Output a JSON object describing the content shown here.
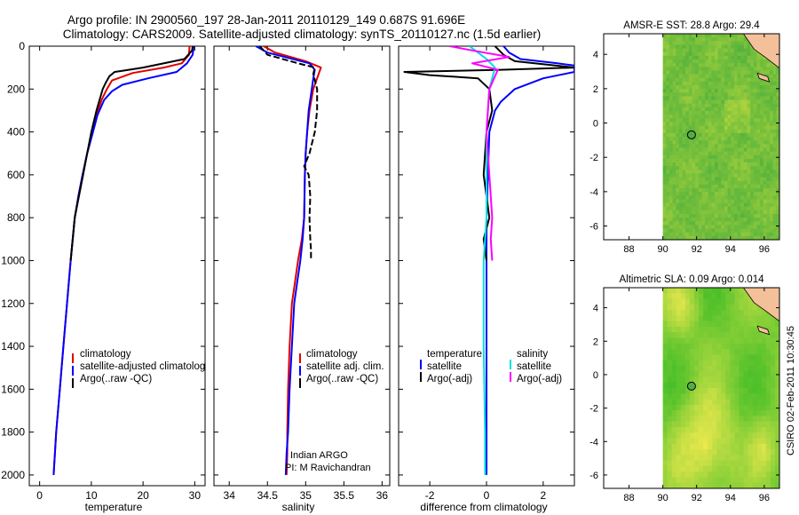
{
  "title_line1": "Argo profile: IN 2900560_197 28-Jan-2011 20110129_149 0.687S 91.696E",
  "title_line2": "Climatology: CARS2009. Satellite-adjusted climatology: synTS_20110127.nc (1.5d earlier)",
  "side_label": "CSIRO 02-Feb-2011 10:30:45",
  "credit_line1": "Indian ARGO",
  "credit_line2": "PI: M Ravichandran",
  "colors": {
    "climatology": "#e00000",
    "satellite": "#0000ff",
    "argo": "#000000",
    "cyan": "#00e0e0",
    "magenta": "#ff00ff",
    "map_green": "#66cc33",
    "land": "#f4c09a"
  },
  "chart_data": [
    {
      "type": "line",
      "xlabel": "temperature",
      "ylabel": "",
      "xlim": [
        -2,
        32
      ],
      "ylim": [
        2050,
        0
      ],
      "yreversed": true,
      "xticks": [
        0,
        10,
        20,
        30
      ],
      "yticks": [
        0,
        200,
        400,
        600,
        800,
        1000,
        1200,
        1400,
        1600,
        1800,
        2000
      ],
      "legend": [
        "climatology",
        "satellite-adjusted climatology",
        "Argo(..raw -QC)"
      ],
      "legend_display": [
        "climatology",
        "satellite-adjusted climatolog",
        "Argo(..raw -QC)"
      ],
      "series": [
        {
          "name": "climatology",
          "color": "#e00000",
          "x": [
            29.0,
            28.9,
            27.5,
            24.0,
            18.0,
            14.0,
            13.0,
            12.0,
            11.0,
            10.0,
            9.2,
            8.3,
            7.5,
            6.8,
            6.0,
            5.3,
            4.6,
            3.9,
            3.2,
            2.7
          ],
          "y": [
            0,
            40,
            80,
            100,
            125,
            160,
            200,
            250,
            320,
            420,
            500,
            600,
            700,
            800,
            1000,
            1200,
            1400,
            1600,
            1800,
            2000
          ]
        },
        {
          "name": "satellite-adjusted climatology",
          "color": "#0000ff",
          "x": [
            29.8,
            29.6,
            28.5,
            26.5,
            21.0,
            16.0,
            14.0,
            12.5,
            11.2,
            10.1,
            9.2,
            8.3,
            7.5,
            6.8,
            6.0,
            5.3,
            4.6,
            3.9,
            3.2,
            2.7
          ],
          "y": [
            0,
            40,
            80,
            120,
            150,
            180,
            210,
            250,
            320,
            420,
            500,
            600,
            700,
            800,
            1000,
            1200,
            1400,
            1600,
            1800,
            2000
          ]
        },
        {
          "name": "Argo(..raw -QC)",
          "color": "#000000",
          "x": [
            29.6,
            29.5,
            28.0,
            20.0,
            16.0,
            14.5,
            13.5,
            12.8,
            12.2,
            11.0,
            10.0,
            9.2,
            8.4,
            7.6,
            6.8,
            6.0
          ],
          "y": [
            0,
            20,
            60,
            100,
            115,
            120,
            140,
            170,
            200,
            300,
            400,
            500,
            600,
            700,
            800,
            1000
          ]
        }
      ]
    },
    {
      "type": "line",
      "xlabel": "salinity",
      "ylabel": "",
      "xlim": [
        33.8,
        36.1
      ],
      "ylim": [
        2050,
        0
      ],
      "yreversed": true,
      "xticks": [
        34,
        34.5,
        35,
        35.5,
        36
      ],
      "xticklabels": [
        "34",
        "34.5",
        "35",
        "35.5",
        "36"
      ],
      "legend": [
        "climatology",
        "satellite adj. clim.",
        "Argo(..raw -QC)"
      ],
      "series": [
        {
          "name": "climatology",
          "color": "#e00000",
          "x": [
            34.45,
            34.6,
            35.0,
            35.2,
            35.15,
            35.1,
            35.05,
            35.02,
            35.0,
            34.99,
            34.98,
            34.95,
            34.9,
            34.86,
            34.82,
            34.79,
            34.77,
            34.76,
            34.76,
            34.75
          ],
          "y": [
            0,
            30,
            70,
            100,
            150,
            200,
            300,
            400,
            500,
            600,
            800,
            900,
            1000,
            1100,
            1200,
            1400,
            1600,
            1800,
            1900,
            2000
          ]
        },
        {
          "name": "satellite adj. clim.",
          "color": "#0000ff",
          "x": [
            34.35,
            34.5,
            35.05,
            35.12,
            35.1,
            35.08,
            35.04,
            35.02,
            35.0,
            34.99,
            34.98,
            34.96,
            34.93,
            34.89,
            34.85,
            34.82,
            34.79,
            34.77,
            34.75,
            34.74
          ],
          "y": [
            0,
            30,
            80,
            110,
            150,
            200,
            300,
            400,
            500,
            600,
            800,
            900,
            1000,
            1100,
            1200,
            1400,
            1600,
            1800,
            1900,
            2000
          ]
        },
        {
          "name": "Argo(..raw -QC)",
          "color": "#000000",
          "x": [
            34.4,
            34.5,
            34.9,
            35.12,
            35.1,
            35.15,
            35.15,
            35.12,
            35.05,
            34.98,
            35.04,
            35.06,
            35.05,
            35.06,
            35.07,
            35.07
          ],
          "y": [
            0,
            40,
            80,
            100,
            130,
            200,
            300,
            400,
            500,
            560,
            600,
            700,
            800,
            900,
            950,
            1000
          ]
        }
      ]
    },
    {
      "type": "line",
      "xlabel": "difference from climatology",
      "ylabel": "",
      "xlim": [
        -3.1,
        3.1
      ],
      "ylim": [
        2050,
        0
      ],
      "yreversed": true,
      "xticks": [
        -2,
        0,
        2
      ],
      "xticklabels": [
        "-2",
        "0",
        "2"
      ],
      "legend_groups": [
        {
          "title": "temperature",
          "items": [
            "satellite",
            "Argo(-adj)"
          ]
        },
        {
          "title": "salinity",
          "items": [
            "satellite",
            "Argo(-adj)"
          ]
        }
      ],
      "series": [
        {
          "name": "temperature satellite",
          "color": "#0000ff",
          "x": [
            0.6,
            0.8,
            1.2,
            2.5,
            3.1,
            3.1,
            2.0,
            1.0,
            0.5,
            0.3,
            0.1,
            0.05,
            0.0,
            0.0,
            0.0,
            0.0
          ],
          "y": [
            0,
            30,
            60,
            80,
            90,
            120,
            150,
            200,
            260,
            300,
            400,
            600,
            800,
            1000,
            1500,
            2000
          ]
        },
        {
          "name": "temperature Argo(-adj)",
          "color": "#000000",
          "x": [
            0.3,
            0.6,
            1.0,
            3.1,
            0.5,
            -2.9,
            -2.0,
            -0.3,
            0.1,
            0.2,
            0.0,
            -0.1,
            0.0,
            0.1,
            -0.1,
            0.0
          ],
          "y": [
            0,
            40,
            70,
            100,
            110,
            120,
            135,
            150,
            200,
            300,
            400,
            600,
            700,
            800,
            900,
            1000
          ]
        },
        {
          "name": "salinity satellite",
          "color": "#00e0e0",
          "x": [
            -0.6,
            -0.3,
            0.0,
            0.3,
            0.1,
            0.0,
            0.0,
            -0.1,
            -0.1,
            -0.05,
            -0.05
          ],
          "y": [
            0,
            30,
            60,
            100,
            200,
            400,
            800,
            1000,
            1400,
            1800,
            2000
          ]
        },
        {
          "name": "salinity Argo(-adj)",
          "color": "#ff00ff",
          "x": [
            -1.3,
            -0.5,
            0.8,
            -0.5,
            0.4,
            0.1,
            0.0,
            0.1,
            0.2,
            0.15,
            0.2
          ],
          "y": [
            0,
            20,
            50,
            80,
            110,
            200,
            400,
            600,
            800,
            900,
            1000
          ]
        }
      ]
    },
    {
      "type": "heatmap",
      "title": "AMSR-E SST: 28.8 Argo: 29.4",
      "xlim": [
        86.5,
        96.9
      ],
      "ylim": [
        -6.8,
        5.2
      ],
      "xticks": [
        88,
        90,
        92,
        94,
        96
      ],
      "yticks": [
        -6,
        -4,
        -2,
        0,
        2,
        4
      ],
      "marker": {
        "lon": 91.696,
        "lat": -0.687
      }
    },
    {
      "type": "heatmap",
      "title": "Altimetric SLA: 0.09 Argo: 0.014",
      "xlim": [
        86.5,
        96.9
      ],
      "ylim": [
        -6.8,
        5.2
      ],
      "xticks": [
        88,
        90,
        92,
        94,
        96
      ],
      "yticks": [
        -6,
        -4,
        -2,
        0,
        2,
        4
      ],
      "marker": {
        "lon": 91.696,
        "lat": -0.687
      }
    }
  ]
}
